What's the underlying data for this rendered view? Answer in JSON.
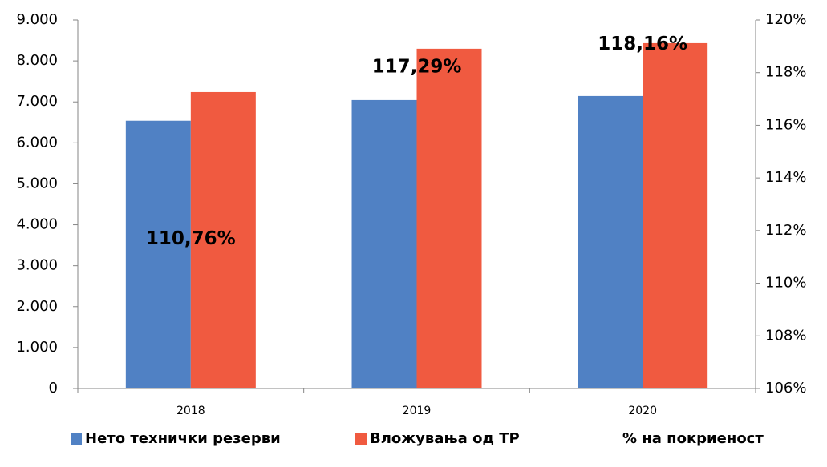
{
  "chart_data": {
    "type": "bar",
    "categories": [
      "2018",
      "2019",
      "2020"
    ],
    "series": [
      {
        "name": "Нето технички резерви",
        "color": "#5081c4",
        "values": [
          6540,
          7045,
          7143
        ]
      },
      {
        "name": "Вложувања од ТР",
        "color": "#f05a40",
        "values": [
          7240,
          8298,
          8434
        ]
      },
      {
        "name": "% на покриеност",
        "axis": "y2",
        "values": [
          110.76,
          117.29,
          118.16
        ],
        "value_labels": [
          "110,76%",
          "117,29%",
          "118,16%"
        ]
      }
    ],
    "ylim": [
      0,
      9000
    ],
    "yticks": [
      0,
      {
        "value": 1000,
        "label": "1.000"
      },
      {
        "value": 2000,
        "label": "2.000"
      },
      {
        "value": 3000,
        "label": "3.000"
      },
      {
        "value": 4000,
        "label": "4.000"
      },
      {
        "value": 5000,
        "label": "5.000"
      },
      {
        "value": 6000,
        "label": "6.000"
      },
      {
        "value": 7000,
        "label": "7.000"
      },
      {
        "value": 8000,
        "label": "8.000"
      },
      {
        "value": 9000,
        "label": "9.000"
      }
    ],
    "y2lim": [
      106,
      120
    ],
    "y2ticks": [
      {
        "value": 106,
        "label": "106%"
      },
      {
        "value": 108,
        "label": "108%"
      },
      {
        "value": 110,
        "label": "110%"
      },
      {
        "value": 112,
        "label": "112%"
      },
      {
        "value": 114,
        "label": "114%"
      },
      {
        "value": 116,
        "label": "116%"
      },
      {
        "value": 118,
        "label": "118%"
      },
      {
        "value": 120,
        "label": "120%"
      }
    ],
    "legend": "bottom"
  }
}
